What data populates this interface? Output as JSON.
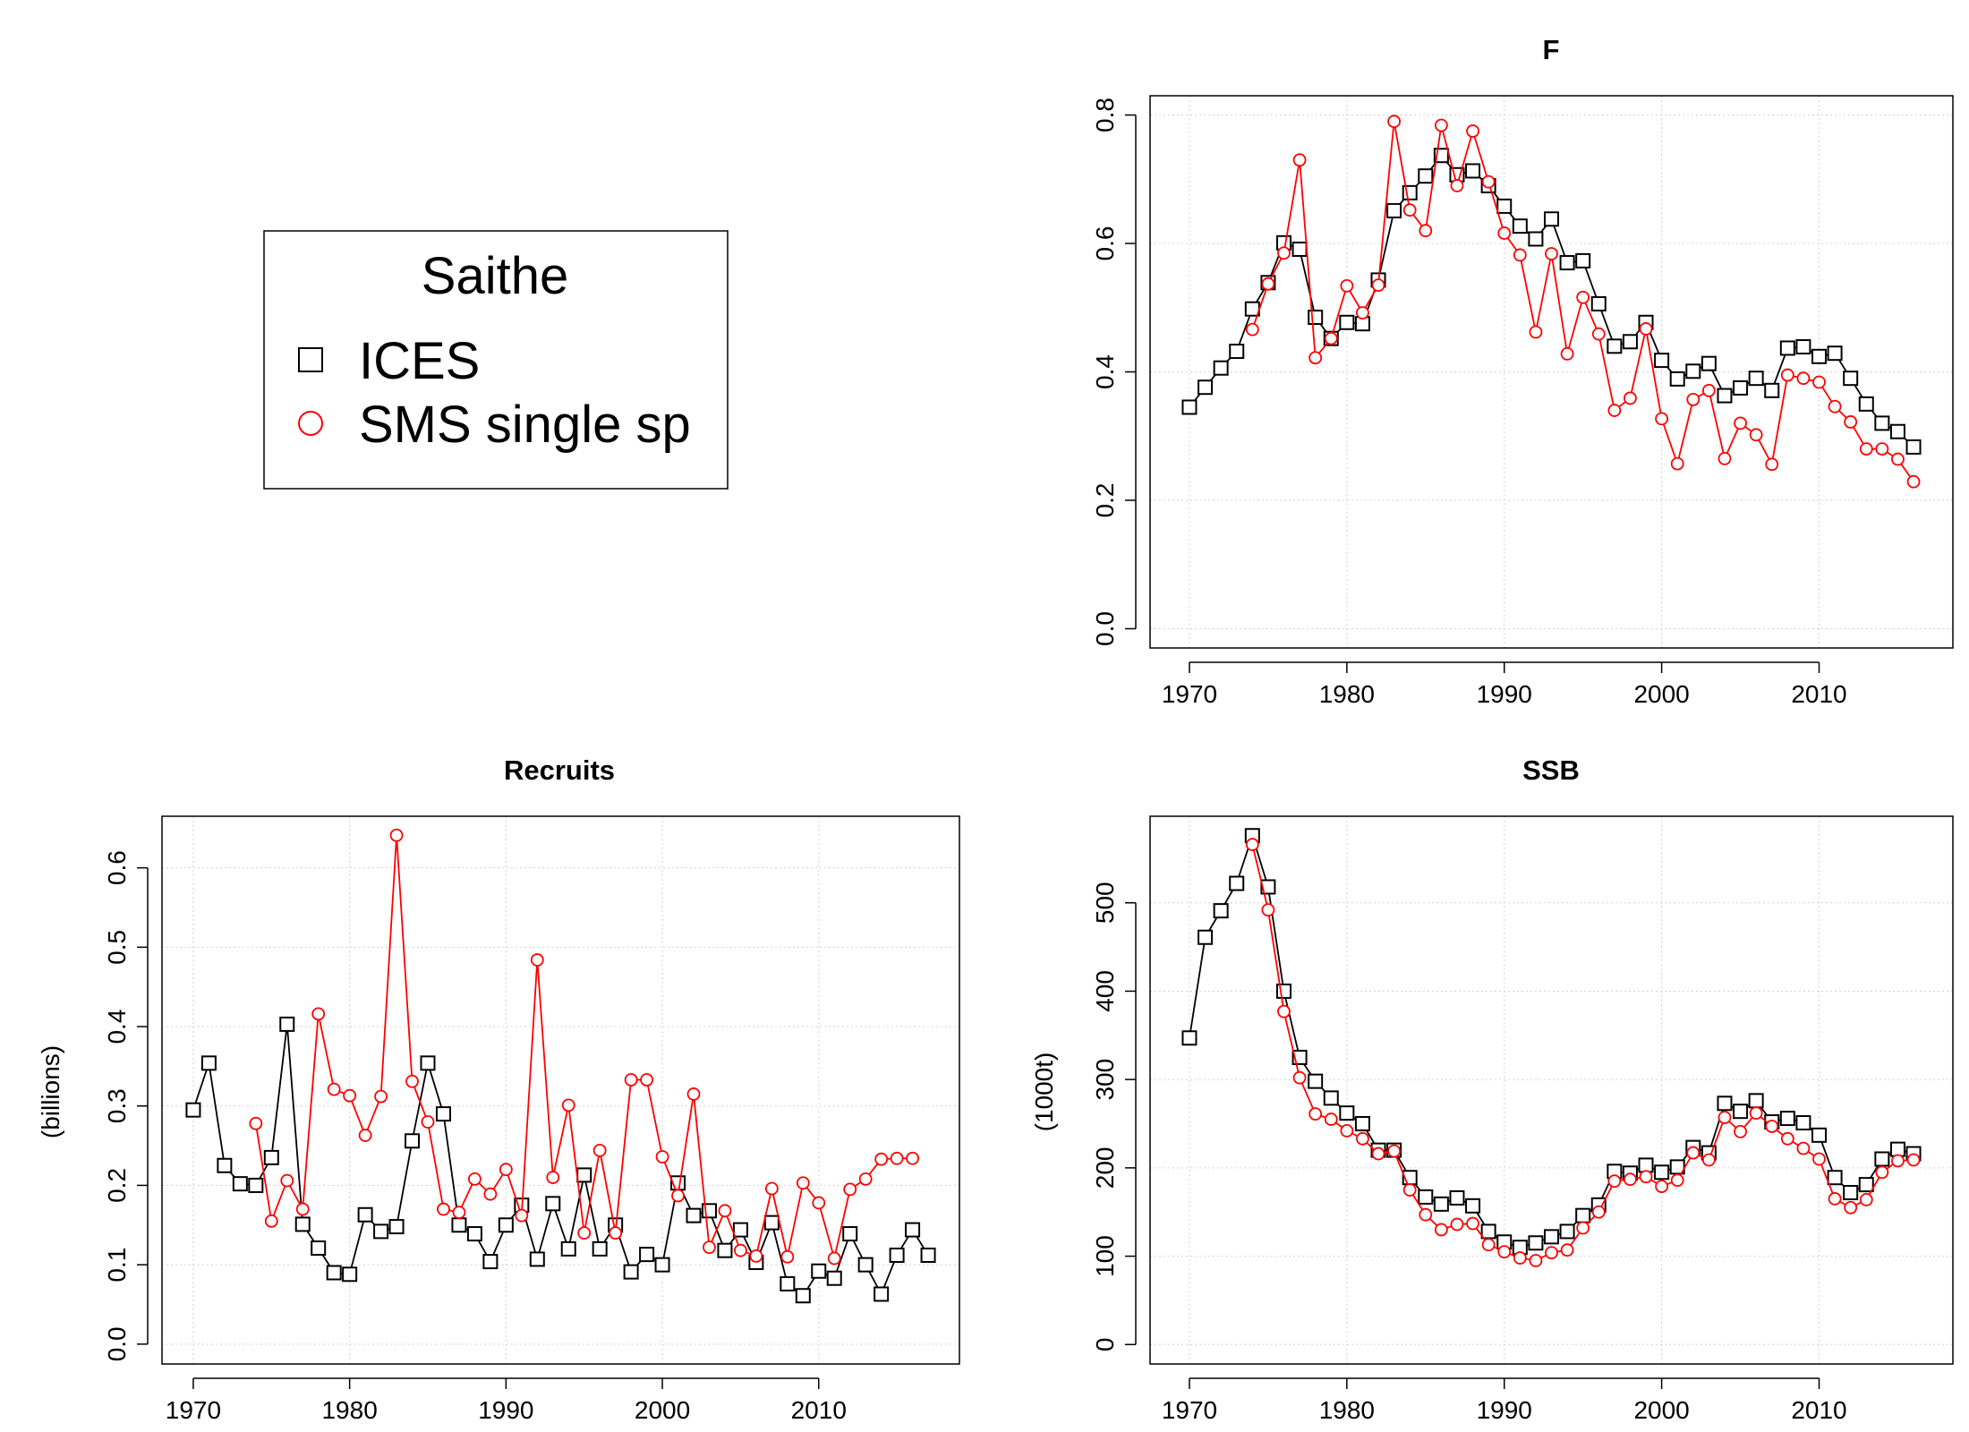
{
  "legend": {
    "title": "Saithe",
    "items": [
      {
        "label": "ICES",
        "marker": "square",
        "color": "#000000"
      },
      {
        "label": "SMS single sp",
        "marker": "circle",
        "color": "#ff0000"
      }
    ]
  },
  "chart_data": [
    {
      "id": "F",
      "type": "line",
      "title": "F",
      "xlabel": "",
      "ylabel": "",
      "xlim": [
        1967.5,
        2018.5
      ],
      "ylim": [
        -0.03,
        0.83
      ],
      "xticks": [
        1970,
        1980,
        1990,
        2000,
        2010
      ],
      "yticks": [
        0.0,
        0.2,
        0.4,
        0.6,
        0.8
      ],
      "ytick_labels": [
        "0.0",
        "0.2",
        "0.4",
        "0.6",
        "0.8"
      ],
      "grid": true,
      "series": [
        {
          "name": "ICES",
          "marker": "square",
          "color": "#000000",
          "x": [
            1970,
            1971,
            1972,
            1973,
            1974,
            1975,
            1976,
            1977,
            1978,
            1979,
            1980,
            1981,
            1982,
            1983,
            1984,
            1985,
            1986,
            1987,
            1988,
            1989,
            1990,
            1991,
            1992,
            1993,
            1994,
            1995,
            1996,
            1997,
            1998,
            1999,
            2000,
            2001,
            2002,
            2003,
            2004,
            2005,
            2006,
            2007,
            2008,
            2009,
            2010,
            2011,
            2012,
            2013,
            2014,
            2015,
            2016
          ],
          "values": [
            0.345,
            0.376,
            0.406,
            0.432,
            0.498,
            0.539,
            0.601,
            0.591,
            0.485,
            0.452,
            0.477,
            0.475,
            0.543,
            0.651,
            0.679,
            0.705,
            0.737,
            0.707,
            0.713,
            0.69,
            0.658,
            0.627,
            0.607,
            0.638,
            0.57,
            0.573,
            0.506,
            0.44,
            0.447,
            0.477,
            0.418,
            0.389,
            0.401,
            0.413,
            0.363,
            0.375,
            0.39,
            0.371,
            0.437,
            0.439,
            0.424,
            0.429,
            0.39,
            0.35,
            0.32,
            0.307,
            0.283
          ]
        },
        {
          "name": "SMS single sp",
          "marker": "circle",
          "color": "#ff0000",
          "x": [
            1974,
            1975,
            1976,
            1977,
            1978,
            1979,
            1980,
            1981,
            1982,
            1983,
            1984,
            1985,
            1986,
            1987,
            1988,
            1989,
            1990,
            1991,
            1992,
            1993,
            1994,
            1995,
            1996,
            1997,
            1998,
            1999,
            2000,
            2001,
            2002,
            2003,
            2004,
            2005,
            2006,
            2007,
            2008,
            2009,
            2010,
            2011,
            2012,
            2013,
            2014,
            2015,
            2016
          ],
          "values": [
            0.466,
            0.537,
            0.585,
            0.73,
            0.422,
            0.452,
            0.534,
            0.492,
            0.535,
            0.79,
            0.652,
            0.62,
            0.784,
            0.69,
            0.775,
            0.696,
            0.616,
            0.582,
            0.462,
            0.584,
            0.428,
            0.516,
            0.459,
            0.34,
            0.359,
            0.467,
            0.327,
            0.257,
            0.357,
            0.371,
            0.265,
            0.32,
            0.302,
            0.256,
            0.395,
            0.39,
            0.384,
            0.346,
            0.322,
            0.28,
            0.28,
            0.264,
            0.229
          ]
        }
      ]
    },
    {
      "id": "Recruits",
      "type": "line",
      "title": "Recruits",
      "xlabel": "",
      "ylabel": "(billions)",
      "xlim": [
        1968,
        2019
      ],
      "ylim": [
        -0.025,
        0.665
      ],
      "xticks": [
        1970,
        1980,
        1990,
        2000,
        2010
      ],
      "yticks": [
        0.0,
        0.1,
        0.2,
        0.3,
        0.4,
        0.5,
        0.6
      ],
      "ytick_labels": [
        "0.0",
        "0.1",
        "0.2",
        "0.3",
        "0.4",
        "0.5",
        "0.6"
      ],
      "grid": true,
      "series": [
        {
          "name": "ICES",
          "marker": "square",
          "color": "#000000",
          "x": [
            1970,
            1971,
            1972,
            1973,
            1974,
            1975,
            1976,
            1977,
            1978,
            1979,
            1980,
            1981,
            1982,
            1983,
            1984,
            1985,
            1986,
            1987,
            1988,
            1989,
            1990,
            1991,
            1992,
            1993,
            1994,
            1995,
            1996,
            1997,
            1998,
            1999,
            2000,
            2001,
            2002,
            2003,
            2004,
            2005,
            2006,
            2007,
            2008,
            2009,
            2010,
            2011,
            2012,
            2013,
            2014,
            2015,
            2016,
            2017
          ],
          "values": [
            0.295,
            0.354,
            0.225,
            0.202,
            0.2,
            0.235,
            0.403,
            0.151,
            0.121,
            0.09,
            0.088,
            0.163,
            0.142,
            0.148,
            0.256,
            0.354,
            0.29,
            0.15,
            0.139,
            0.104,
            0.15,
            0.175,
            0.107,
            0.177,
            0.12,
            0.213,
            0.12,
            0.15,
            0.091,
            0.113,
            0.1,
            0.203,
            0.162,
            0.168,
            0.118,
            0.144,
            0.103,
            0.153,
            0.076,
            0.061,
            0.092,
            0.083,
            0.139,
            0.1,
            0.063,
            0.112,
            0.144,
            0.112
          ]
        },
        {
          "name": "SMS single sp",
          "marker": "circle",
          "color": "#ff0000",
          "x": [
            1974,
            1975,
            1976,
            1977,
            1978,
            1979,
            1980,
            1981,
            1982,
            1983,
            1984,
            1985,
            1986,
            1987,
            1988,
            1989,
            1990,
            1991,
            1992,
            1993,
            1994,
            1995,
            1996,
            1997,
            1998,
            1999,
            2000,
            2001,
            2002,
            2003,
            2004,
            2005,
            2006,
            2007,
            2008,
            2009,
            2010,
            2011,
            2012,
            2013,
            2014,
            2015,
            2016
          ],
          "values": [
            0.278,
            0.155,
            0.206,
            0.17,
            0.416,
            0.321,
            0.313,
            0.263,
            0.312,
            0.641,
            0.331,
            0.28,
            0.17,
            0.166,
            0.208,
            0.189,
            0.22,
            0.162,
            0.484,
            0.21,
            0.301,
            0.14,
            0.244,
            0.14,
            0.333,
            0.333,
            0.236,
            0.187,
            0.315,
            0.122,
            0.168,
            0.118,
            0.111,
            0.196,
            0.11,
            0.203,
            0.178,
            0.108,
            0.195,
            0.208,
            0.233,
            0.234,
            0.234
          ]
        }
      ]
    },
    {
      "id": "SSB",
      "type": "line",
      "title": "SSB",
      "xlabel": "",
      "ylabel": "(1000t)",
      "xlim": [
        1967.5,
        2018.5
      ],
      "ylim": [
        -22,
        598
      ],
      "xticks": [
        1970,
        1980,
        1990,
        2000,
        2010
      ],
      "yticks": [
        0,
        100,
        200,
        300,
        400,
        500
      ],
      "ytick_labels": [
        "0",
        "100",
        "200",
        "300",
        "400",
        "500"
      ],
      "grid": true,
      "series": [
        {
          "name": "ICES",
          "marker": "square",
          "color": "#000000",
          "x": [
            1970,
            1971,
            1972,
            1973,
            1974,
            1975,
            1976,
            1977,
            1978,
            1979,
            1980,
            1981,
            1982,
            1983,
            1984,
            1985,
            1986,
            1987,
            1988,
            1989,
            1990,
            1991,
            1992,
            1993,
            1994,
            1995,
            1996,
            1997,
            1998,
            1999,
            2000,
            2001,
            2002,
            2003,
            2004,
            2005,
            2006,
            2007,
            2008,
            2009,
            2010,
            2011,
            2012,
            2013,
            2014,
            2015,
            2016
          ],
          "values": [
            347,
            461,
            491,
            522,
            576,
            518,
            400,
            325,
            298,
            279,
            262,
            250,
            220,
            220,
            189,
            167,
            159,
            166,
            157,
            128,
            116,
            110,
            115,
            122,
            128,
            146,
            158,
            196,
            194,
            203,
            195,
            201,
            223,
            217,
            273,
            264,
            276,
            252,
            256,
            251,
            237,
            189,
            172,
            181,
            210,
            221,
            216
          ]
        },
        {
          "name": "SMS single sp",
          "marker": "circle",
          "color": "#ff0000",
          "x": [
            1974,
            1975,
            1976,
            1977,
            1978,
            1979,
            1980,
            1981,
            1982,
            1983,
            1984,
            1985,
            1986,
            1987,
            1988,
            1989,
            1990,
            1991,
            1992,
            1993,
            1994,
            1995,
            1996,
            1997,
            1998,
            1999,
            2000,
            2001,
            2002,
            2003,
            2004,
            2005,
            2006,
            2007,
            2008,
            2009,
            2010,
            2011,
            2012,
            2013,
            2014,
            2015,
            2016
          ],
          "values": [
            566,
            492,
            377,
            302,
            261,
            255,
            242,
            233,
            216,
            219,
            175,
            147,
            130,
            136,
            137,
            113,
            105,
            98,
            95,
            104,
            107,
            132,
            150,
            185,
            187,
            190,
            179,
            186,
            217,
            209,
            257,
            241,
            262,
            247,
            233,
            222,
            210,
            165,
            155,
            164,
            195,
            208,
            209
          ]
        }
      ]
    }
  ]
}
